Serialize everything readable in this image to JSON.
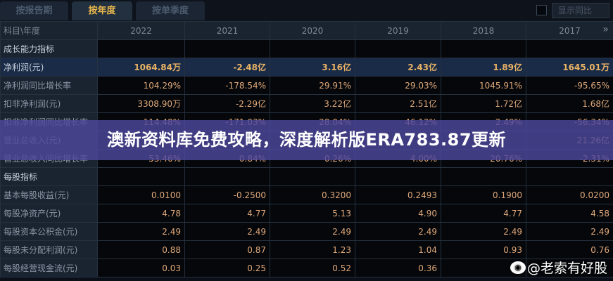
{
  "tabs": [
    {
      "label": "按报告期"
    },
    {
      "label": "按年度",
      "active": true
    },
    {
      "label": "按单季度"
    }
  ],
  "yoy_toggle": {
    "label": "显示同比",
    "checked": false
  },
  "table": {
    "header": [
      "科目\\年度",
      "2022",
      "2021",
      "2020",
      "2019",
      "2018",
      "2017"
    ],
    "rows": [
      {
        "label": "成长能力指标",
        "section": true,
        "values": [
          "",
          "",
          "",
          "",
          "",
          ""
        ]
      },
      {
        "label": "净利润(元)",
        "highlight": true,
        "values": [
          "1064.84万",
          "-2.48亿",
          "3.16亿",
          "2.43亿",
          "1.89亿",
          "1645.01万"
        ]
      },
      {
        "label": "净利润同比增长率",
        "values": [
          "104.29%",
          "-178.54%",
          "29.91%",
          "29.03%",
          "1045.91%",
          "-95.65%"
        ]
      },
      {
        "label": "扣非净利润(元)",
        "values": [
          "3308.90万",
          "-2.29亿",
          "3.22亿",
          "2.51亿",
          "1.72亿",
          "1.68亿"
        ]
      },
      {
        "label": "扣非净利润同比增长率",
        "values": [
          "114.48%",
          "-171.03%",
          "28.04%",
          "46.12%",
          "2.49%",
          "-56.34%"
        ]
      },
      {
        "label": "营业总收入(元)",
        "values": [
          "",
          "",
          "",
          "",
          "",
          "21.26亿"
        ]
      },
      {
        "label": "营业总收入同比增长率",
        "values": [
          "53.46%",
          "0.84%",
          "0.26%",
          "4.00%",
          "20.76%",
          "-2.31%"
        ]
      },
      {
        "label": "每股指标",
        "section": true,
        "values": [
          "",
          "",
          "",
          "",
          "",
          ""
        ]
      },
      {
        "label": "基本每股收益(元)",
        "values": [
          "0.0100",
          "-0.2500",
          "0.3200",
          "0.2493",
          "0.1900",
          "0.0200"
        ]
      },
      {
        "label": "每股净资产(元)",
        "values": [
          "4.78",
          "4.77",
          "5.13",
          "4.90",
          "4.77",
          "4.58"
        ]
      },
      {
        "label": "每股资本公积金(元)",
        "values": [
          "2.49",
          "2.49",
          "2.49",
          "2.49",
          "2.49",
          "2.49"
        ]
      },
      {
        "label": "每股未分配利润(元)",
        "values": [
          "0.88",
          "0.87",
          "1.23",
          "1.04",
          "0.93",
          "0.76"
        ]
      },
      {
        "label": "每股经营现金流(元)",
        "values": [
          "0.03",
          "0.25",
          "0.52",
          "0.36",
          "",
          ""
        ]
      }
    ]
  },
  "banner": {
    "title": "澳新资料库免费攻略，深度解析版ERA783.87更新"
  },
  "watermark": {
    "text": "@老索有好股",
    "icon": "weibo-icon"
  }
}
